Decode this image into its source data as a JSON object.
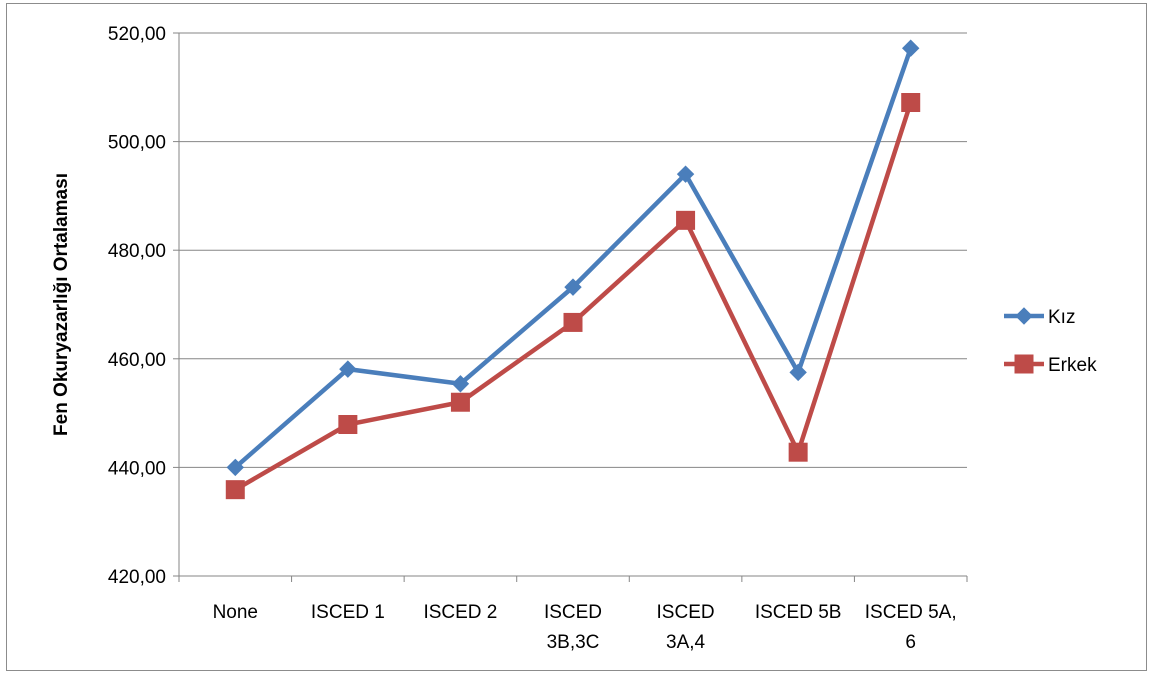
{
  "chart_data": {
    "type": "line",
    "categories": [
      [
        "None"
      ],
      [
        "ISCED 1"
      ],
      [
        "ISCED 2"
      ],
      [
        "ISCED",
        "3B,3C"
      ],
      [
        "ISCED",
        "3A,4"
      ],
      [
        "ISCED 5B"
      ],
      [
        "ISCED 5A,",
        "6"
      ]
    ],
    "series": [
      {
        "name": "Kız",
        "color": "#4a7ebb",
        "marker": "diamond",
        "values": [
          440.0,
          458.1,
          455.4,
          473.2,
          494.0,
          457.5,
          517.2
        ]
      },
      {
        "name": "Erkek",
        "color": "#be4b48",
        "marker": "square",
        "values": [
          435.9,
          447.9,
          452.0,
          466.7,
          485.5,
          442.8,
          507.2
        ]
      }
    ],
    "ylabel": "Fen Okuryazarlığı Ortalaması",
    "ylim": [
      420,
      520
    ],
    "yticks": [
      "420,00",
      "440,00",
      "460,00",
      "480,00",
      "500,00",
      "520,00"
    ],
    "grid": true,
    "legend_position": "right"
  }
}
